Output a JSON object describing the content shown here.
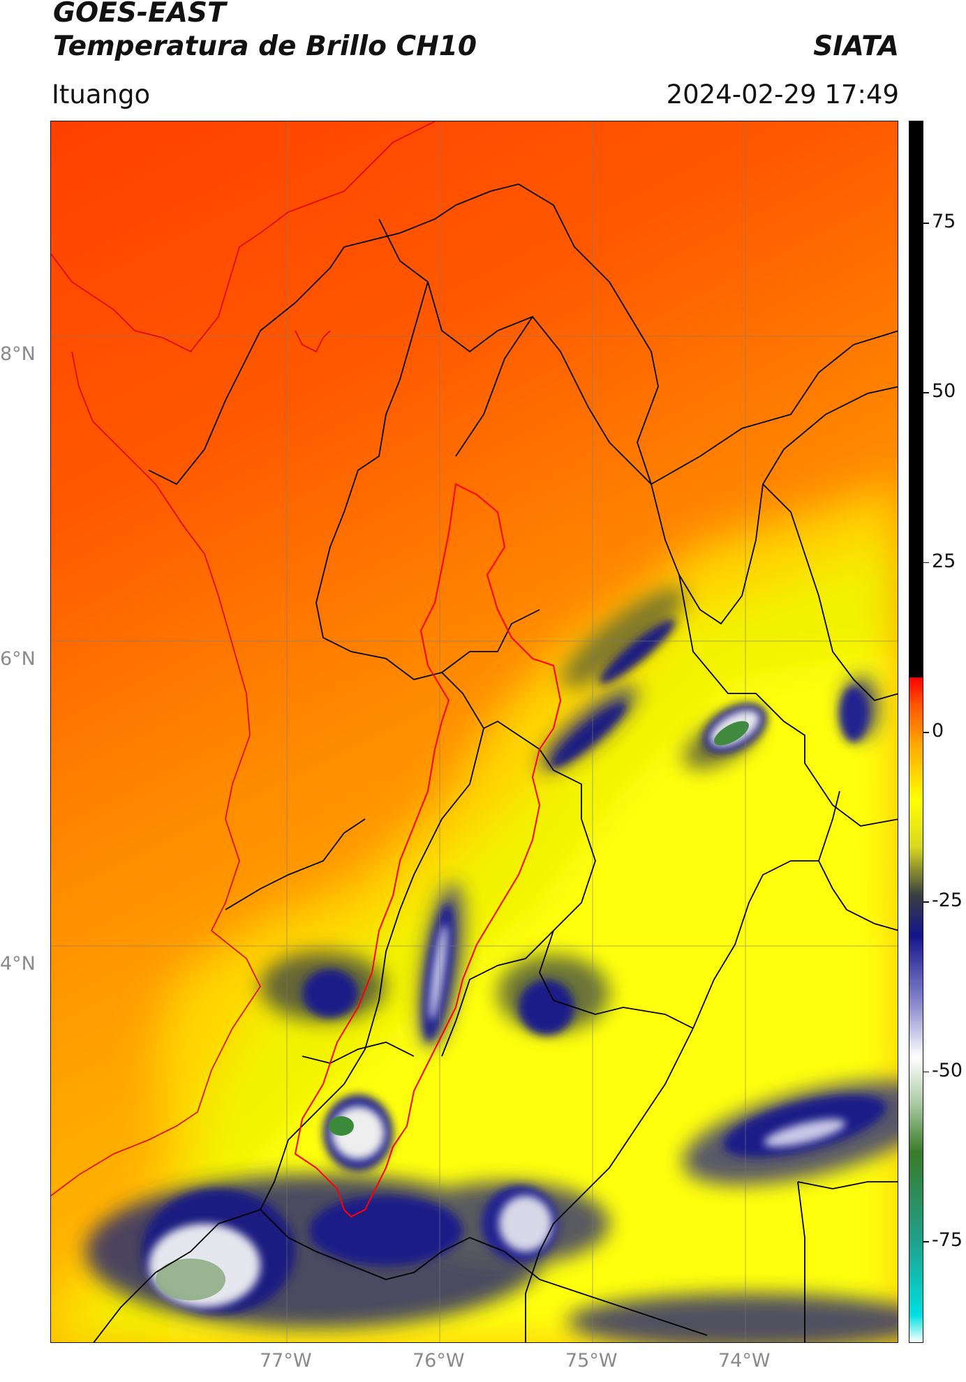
{
  "header": {
    "satellite": "GOES-EAST",
    "product": "Temperatura de Brillo CH10",
    "org": "SIATA",
    "region": "Ituango",
    "datetime": "2024-02-29 17:49"
  },
  "map": {
    "lat_labels": [
      "8°N",
      "6°N",
      "4°N"
    ],
    "lon_labels": [
      "77°W",
      "76°W",
      "75°W",
      "74°W"
    ],
    "lat_range": [
      1.8,
      9.55
    ],
    "lon_range": [
      -78.55,
      -72.9
    ]
  },
  "colorbar": {
    "ticks": [
      "75",
      "50",
      "25",
      "0",
      "-25",
      "-50",
      "-75"
    ],
    "tick_values": [
      75,
      50,
      25,
      0,
      -25,
      -50,
      -75
    ],
    "range": [
      -90,
      90
    ],
    "stops": [
      {
        "v": -90,
        "c": "#ffffff"
      },
      {
        "v": -86,
        "c": "#00e0e0"
      },
      {
        "v": -75,
        "c": "#1fa08a"
      },
      {
        "v": -62,
        "c": "#3a7a2a"
      },
      {
        "v": -55,
        "c": "#a8c8a0"
      },
      {
        "v": -48,
        "c": "#ffffff"
      },
      {
        "v": -40,
        "c": "#8888cc"
      },
      {
        "v": -30,
        "c": "#14148a"
      },
      {
        "v": -24,
        "c": "#3a4040"
      },
      {
        "v": -17,
        "c": "#d8d820"
      },
      {
        "v": -10,
        "c": "#ffff00"
      },
      {
        "v": -2,
        "c": "#ffaa00"
      },
      {
        "v": 4,
        "c": "#ff5500"
      },
      {
        "v": 8,
        "c": "#ff0000"
      },
      {
        "v": 8.01,
        "c": "#000000"
      },
      {
        "v": 90,
        "c": "#000000"
      }
    ]
  },
  "colors": {
    "warm": "#ff4400",
    "mid": "#ff9900",
    "yellow": "#ffee00",
    "cold_blue": "#1c1c80",
    "cold_white": "#f2f2f2",
    "coldest_green": "#3f8a3f",
    "border_line": "#000000",
    "basin_line": "#ff0000"
  }
}
